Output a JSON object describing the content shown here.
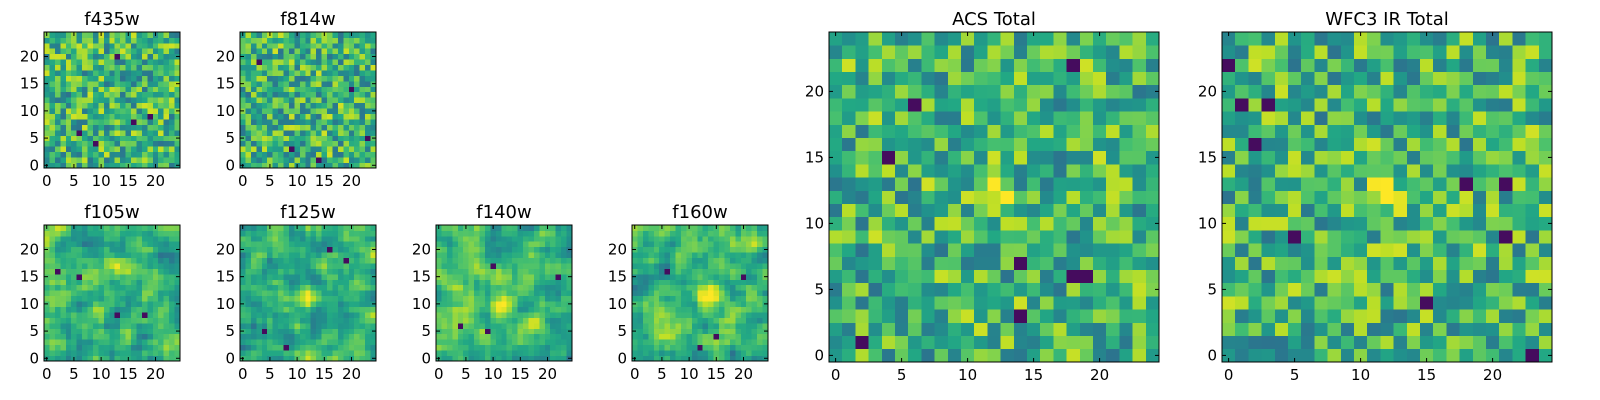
{
  "chart_data": [
    {
      "type": "heatmap",
      "title": "f435w",
      "xticks": [
        0,
        5,
        10,
        15,
        20
      ],
      "yticks": [
        0,
        5,
        10,
        15,
        20
      ],
      "xlim": [
        -0.5,
        24.5
      ],
      "ylim": [
        -0.5,
        24.5
      ],
      "grid_size": 25,
      "colormap": "viridis",
      "seed": 11,
      "smooth": 0,
      "hot": [],
      "dark": [
        [
          6,
          6
        ],
        [
          9,
          4
        ],
        [
          16,
          8
        ],
        [
          19,
          9
        ],
        [
          13,
          20
        ]
      ]
    },
    {
      "type": "heatmap",
      "title": "f814w",
      "xticks": [
        0,
        5,
        10,
        15,
        20
      ],
      "yticks": [
        0,
        5,
        10,
        15,
        20
      ],
      "xlim": [
        -0.5,
        24.5
      ],
      "ylim": [
        -0.5,
        24.5
      ],
      "grid_size": 25,
      "colormap": "viridis",
      "seed": 23,
      "smooth": 0,
      "hot": [],
      "dark": [
        [
          3,
          19
        ],
        [
          20,
          14
        ],
        [
          9,
          3
        ],
        [
          23,
          5
        ],
        [
          14,
          1
        ]
      ]
    },
    {
      "type": "heatmap",
      "title": "f105w",
      "xticks": [
        0,
        5,
        10,
        15,
        20
      ],
      "yticks": [
        0,
        5,
        10,
        15,
        20
      ],
      "xlim": [
        -0.5,
        24.5
      ],
      "ylim": [
        -0.5,
        24.5
      ],
      "grid_size": 25,
      "colormap": "viridis",
      "seed": 37,
      "smooth": 1,
      "hot": [
        [
          13,
          17,
          3
        ]
      ],
      "dark": [
        [
          2,
          16
        ],
        [
          6,
          15
        ],
        [
          13,
          8
        ],
        [
          18,
          8
        ]
      ]
    },
    {
      "type": "heatmap",
      "title": "f125w",
      "xticks": [
        0,
        5,
        10,
        15,
        20
      ],
      "yticks": [
        0,
        5,
        10,
        15,
        20
      ],
      "xlim": [
        -0.5,
        24.5
      ],
      "ylim": [
        -0.5,
        24.5
      ],
      "grid_size": 25,
      "colormap": "viridis",
      "seed": 41,
      "smooth": 1,
      "hot": [
        [
          12,
          11,
          3
        ]
      ],
      "dark": [
        [
          4,
          5
        ],
        [
          19,
          18
        ],
        [
          16,
          20
        ],
        [
          8,
          2
        ]
      ]
    },
    {
      "type": "heatmap",
      "title": "f140w",
      "xticks": [
        0,
        5,
        10,
        15,
        20
      ],
      "yticks": [
        0,
        5,
        10,
        15,
        20
      ],
      "xlim": [
        -0.5,
        24.5
      ],
      "ylim": [
        -0.5,
        24.5
      ],
      "grid_size": 25,
      "colormap": "viridis",
      "seed": 53,
      "smooth": 1,
      "hot": [
        [
          12,
          10,
          3
        ]
      ],
      "dark": [
        [
          4,
          6
        ],
        [
          22,
          15
        ],
        [
          10,
          17
        ],
        [
          9,
          5
        ]
      ]
    },
    {
      "type": "heatmap",
      "title": "f160w",
      "xticks": [
        0,
        5,
        10,
        15,
        20
      ],
      "yticks": [
        0,
        5,
        10,
        15,
        20
      ],
      "xlim": [
        -0.5,
        24.5
      ],
      "ylim": [
        -0.5,
        24.5
      ],
      "grid_size": 25,
      "colormap": "viridis",
      "seed": 67,
      "smooth": 1,
      "hot": [
        [
          14,
          12,
          3
        ]
      ],
      "dark": [
        [
          6,
          16
        ],
        [
          12,
          2
        ],
        [
          20,
          15
        ],
        [
          15,
          4
        ]
      ]
    },
    {
      "type": "heatmap",
      "title": "ACS Total",
      "xticks": [
        0,
        5,
        10,
        15,
        20
      ],
      "yticks": [
        0,
        5,
        10,
        15,
        20
      ],
      "xlim": [
        -0.5,
        24.5
      ],
      "ylim": [
        -0.5,
        24.5
      ],
      "grid_size": 25,
      "colormap": "viridis",
      "seed": 79,
      "smooth": 0,
      "hot": [
        [
          12,
          12,
          2.5
        ]
      ],
      "dark": [
        [
          6,
          19
        ],
        [
          18,
          22
        ],
        [
          4,
          15
        ],
        [
          14,
          7
        ],
        [
          18,
          6
        ],
        [
          19,
          6
        ],
        [
          14,
          3
        ],
        [
          2,
          1
        ]
      ]
    },
    {
      "type": "heatmap",
      "title": "WFC3 IR Total",
      "xticks": [
        0,
        5,
        10,
        15,
        20
      ],
      "yticks": [
        0,
        5,
        10,
        15,
        20
      ],
      "xlim": [
        -0.5,
        24.5
      ],
      "ylim": [
        -0.5,
        24.5
      ],
      "grid_size": 25,
      "colormap": "viridis",
      "seed": 97,
      "smooth": 0,
      "hot": [
        [
          12,
          12,
          2.5
        ]
      ],
      "dark": [
        [
          0,
          22
        ],
        [
          1,
          19
        ],
        [
          3,
          19
        ],
        [
          2,
          16
        ],
        [
          18,
          13
        ],
        [
          21,
          13
        ],
        [
          5,
          9
        ],
        [
          21,
          9
        ],
        [
          15,
          4
        ],
        [
          23,
          0
        ]
      ]
    }
  ]
}
